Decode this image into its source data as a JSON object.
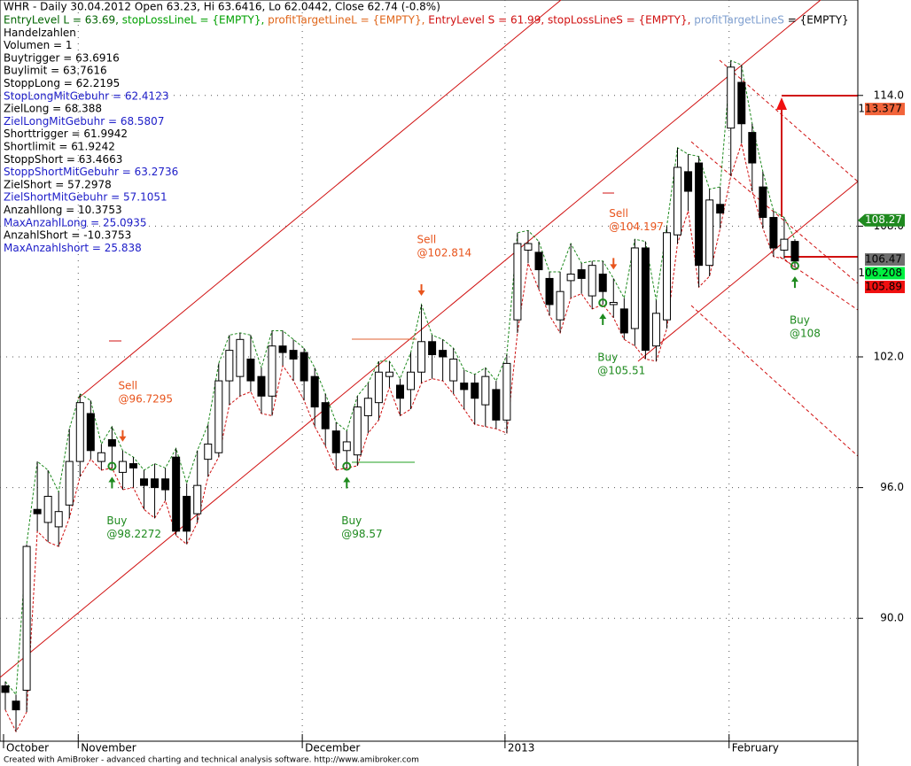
{
  "chart_data": {
    "type": "candlestick",
    "title": "WHR - Daily 30.04.2012 Open 63.23, Hi 63.6416, Lo 62.0442, Close 62.74 (-0.8%)",
    "info_lines": [
      [
        {
          "text": "EntryLevel L = 63.69, ",
          "color": "#006400"
        },
        {
          "text": "stopLossLineL = {EMPTY}, ",
          "color": "#00a000"
        },
        {
          "text": "profitTargetLineL = {EMPTY}, ",
          "color": "#e0661a"
        },
        {
          "text": "EntryLevel S = 61.99, ",
          "color": "#d01010"
        },
        {
          "text": "stopLossLineS = {EMPTY}, ",
          "color": "#d01010"
        },
        {
          "text": "profitTargetLineS",
          "color": "#7f9fcf"
        },
        {
          "text": " = {EMPTY}",
          "color": "#000000"
        }
      ],
      [
        {
          "text": "Handelzahlen",
          "color": "#000000"
        }
      ],
      [
        {
          "text": "Volumen = 1",
          "color": "#000000"
        }
      ],
      [
        {
          "text": "Buytrigger = 63.6916",
          "color": "#000000"
        }
      ],
      [
        {
          "text": "Buylimit = 63.7616",
          "color": "#000000"
        }
      ],
      [
        {
          "text": "StoppLong = 62.2195",
          "color": "#000000"
        }
      ],
      [
        {
          "text": "StopLongMitGebuhr = 62.4123",
          "color": "#1c1cc8"
        }
      ],
      [
        {
          "text": "ZielLong = 68.388",
          "color": "#000000"
        }
      ],
      [
        {
          "text": "ZielLongMitGebuhr = 68.5807",
          "color": "#1c1cc8"
        }
      ],
      [
        {
          "text": "Shorttrigger = 61.9942",
          "color": "#000000"
        }
      ],
      [
        {
          "text": "Shortlimit = 61.9242",
          "color": "#000000"
        }
      ],
      [
        {
          "text": "StoppShort = 63.4663",
          "color": "#000000"
        }
      ],
      [
        {
          "text": "StoppShortMitGebuhr = 63.2736",
          "color": "#1c1cc8"
        }
      ],
      [
        {
          "text": "ZielShort = 57.2978",
          "color": "#000000"
        }
      ],
      [
        {
          "text": "ZielShortMitGebuhr = 57.1051",
          "color": "#1c1cc8"
        }
      ],
      [
        {
          "text": "Anzahllong = 10.3753",
          "color": "#000000"
        }
      ],
      [
        {
          "text": "MaxAnzahlLong = 25.0935",
          "color": "#1c1cc8"
        }
      ],
      [
        {
          "text": "AnzahlShort = -10.3753",
          "color": "#000000"
        }
      ],
      [
        {
          "text": "MaxAnzahlshort = 25.838",
          "color": "#1c1cc8"
        }
      ]
    ],
    "categories": [
      "October",
      null,
      null,
      null,
      null,
      null,
      null,
      "November",
      null,
      null,
      null,
      null,
      null,
      null,
      null,
      null,
      null,
      null,
      null,
      null,
      null,
      null,
      null,
      null,
      null,
      null,
      null,
      null,
      "December",
      null,
      null,
      null,
      null,
      null,
      null,
      null,
      null,
      null,
      null,
      null,
      null,
      null,
      null,
      null,
      null,
      null,
      null,
      "2013",
      null,
      null,
      null,
      null,
      null,
      null,
      null,
      null,
      null,
      null,
      null,
      null,
      null,
      null,
      null,
      null,
      null,
      null,
      null,
      null,
      "February",
      null,
      null,
      null,
      null,
      null,
      null
    ],
    "open": [
      86.9,
      86.2,
      86.7,
      95.0,
      94.4,
      94.2,
      95.2,
      97.2,
      99.4,
      97.2,
      98.2,
      96.7,
      97.1,
      96.4,
      96.4,
      96.4,
      97.4,
      95.6,
      94.8,
      97.3,
      97.6,
      100.9,
      101.1,
      101.9,
      101.1,
      100.2,
      102.5,
      102.3,
      102.2,
      101.1,
      99.9,
      98.6,
      97.7,
      97.5,
      99.3,
      99.9,
      101.1,
      100.7,
      100.5,
      101.3,
      102.7,
      102.3,
      100.9,
      100.8,
      100.8,
      99.8,
      100.5,
      99.1,
      103.7,
      106.9,
      106.8,
      105.6,
      103.7,
      105.5,
      106.0,
      104.8,
      105.8,
      104.4,
      104.2,
      103.3,
      107.0,
      102.5,
      103.7,
      107.6,
      110.5,
      110.9,
      106.2,
      109.0,
      112.5,
      114.6,
      112.3,
      109.8,
      108.4,
      106.9,
      107.3
    ],
    "high": [
      87.1,
      86.5,
      93.4,
      97.2,
      96.8,
      95.8,
      98.7,
      100.3,
      100.0,
      98.0,
      98.8,
      97.7,
      97.4,
      96.8,
      97.1,
      96.9,
      97.8,
      96.2,
      97.7,
      98.9,
      101.7,
      103.0,
      103.1,
      103.0,
      101.5,
      103.2,
      103.2,
      102.8,
      102.4,
      101.5,
      100.3,
      99.0,
      98.6,
      100.2,
      100.8,
      101.8,
      101.8,
      101.0,
      102.2,
      104.4,
      103.0,
      102.8,
      102.4,
      101.4,
      101.2,
      101.5,
      100.9,
      102.1,
      107.7,
      107.8,
      107.3,
      105.9,
      105.9,
      107.2,
      106.3,
      106.4,
      106.4,
      105.6,
      104.7,
      107.4,
      107.3,
      104.6,
      108.0,
      111.6,
      111.3,
      111.2,
      109.7,
      109.8,
      115.6,
      115.4,
      112.7,
      110.5,
      108.7,
      108.4,
      107.4
    ],
    "low": [
      85.8,
      84.8,
      85.7,
      94.0,
      93.5,
      93.3,
      94.6,
      96.5,
      97.3,
      96.8,
      96.9,
      95.9,
      96.0,
      95.0,
      94.6,
      95.4,
      93.8,
      93.4,
      94.4,
      96.5,
      97.4,
      99.8,
      100.2,
      100.4,
      99.4,
      99.3,
      101.6,
      100.9,
      100.0,
      98.8,
      97.9,
      96.8,
      96.9,
      97.0,
      98.5,
      99.1,
      100.6,
      99.3,
      99.6,
      100.8,
      101.0,
      100.9,
      100.3,
      99.6,
      98.9,
      98.8,
      98.7,
      98.5,
      103.1,
      106.3,
      105.1,
      103.9,
      103.1,
      104.7,
      104.9,
      104.2,
      104.4,
      103.8,
      102.8,
      102.5,
      101.9,
      101.8,
      103.3,
      107.2,
      108.7,
      105.2,
      105.7,
      107.9,
      110.3,
      111.8,
      109.6,
      107.9,
      106.6,
      106.5,
      106.1
    ],
    "close": [
      86.6,
      85.8,
      93.3,
      94.8,
      95.6,
      94.9,
      97.2,
      99.9,
      97.7,
      97.6,
      97.9,
      97.2,
      96.9,
      96.1,
      96.0,
      95.9,
      94.0,
      94.0,
      96.1,
      98.0,
      100.9,
      102.3,
      102.8,
      100.9,
      100.2,
      102.5,
      102.2,
      101.9,
      100.9,
      99.7,
      98.7,
      97.6,
      98.1,
      99.7,
      100.1,
      101.3,
      101.3,
      100.1,
      101.3,
      102.7,
      102.1,
      102.0,
      101.9,
      100.5,
      100.1,
      101.1,
      99.1,
      101.7,
      107.2,
      107.2,
      106.0,
      104.4,
      105.0,
      105.8,
      105.6,
      106.2,
      105.0,
      104.5,
      103.1,
      107.0,
      102.3,
      104.0,
      107.7,
      110.7,
      109.6,
      106.2,
      109.2,
      108.6,
      115.3,
      112.7,
      110.9,
      108.4,
      107.0,
      107.4,
      106.4
    ],
    "ylim": [
      84.36,
      118.38
    ],
    "yticks": [
      {
        "value": 90,
        "label": "90.0"
      },
      {
        "value": 96,
        "label": "96.0"
      },
      {
        "value": 102,
        "label": "102.0"
      },
      {
        "value": 108,
        "label": "108.0"
      },
      {
        "value": 114,
        "label": "114.0"
      }
    ],
    "signals": [
      {
        "label": "Sell",
        "price": "@96.7295",
        "index": 11,
        "color": "#e8541c"
      },
      {
        "label": "Buy",
        "price": "@98.2272",
        "index": 10,
        "color": "#1e8a1e"
      },
      {
        "label": "Sell",
        "price": "@102.814",
        "index": 39,
        "color": "#e8541c"
      },
      {
        "label": "Buy",
        "price": "@98.57",
        "index": 32,
        "color": "#1e8a1e"
      },
      {
        "label": "Sell",
        "price": "@104.197",
        "index": 57,
        "color": "#e8541c"
      },
      {
        "label": "Buy",
        "price": "@105.51",
        "index": 56,
        "color": "#1e8a1e"
      },
      {
        "label": "Buy",
        "price": "@108",
        "index": 74,
        "color": "#1e8a1e"
      }
    ],
    "price_tags": [
      {
        "value": 113.377,
        "color": "#f2643a"
      },
      {
        "value": 108.27,
        "color": "#1f8a1f"
      },
      {
        "value": 106.47,
        "color": "#6e6e6e"
      },
      {
        "value": 106.208,
        "color": "#00f040"
      },
      {
        "value": 105.89,
        "color": "#f01010"
      }
    ],
    "footer": "Created with AmiBroker - advanced charting and technical analysis software. http://www.amibroker.com"
  }
}
